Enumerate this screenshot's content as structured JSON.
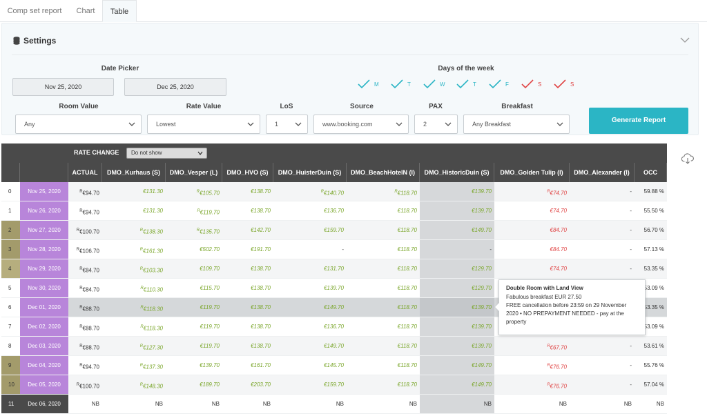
{
  "tabs": [
    "Comp set report",
    "Chart",
    "Table"
  ],
  "settings": {
    "title": "Settings",
    "date_picker_label": "Date Picker",
    "date_from": "Nov 25, 2020",
    "date_to": "Dec 25, 2020",
    "days_label": "Days of the week",
    "days": [
      {
        "letter": "M",
        "weekend": false
      },
      {
        "letter": "T",
        "weekend": false
      },
      {
        "letter": "W",
        "weekend": false
      },
      {
        "letter": "T",
        "weekend": false
      },
      {
        "letter": "F",
        "weekend": false
      },
      {
        "letter": "S",
        "weekend": true
      },
      {
        "letter": "S",
        "weekend": true
      }
    ],
    "room_value_label": "Room Value",
    "room_value": "Any",
    "rate_value_label": "Rate Value",
    "rate_value": "Lowest",
    "los_label": "LoS",
    "los": "1",
    "source_label": "Source",
    "source": "www.booking.com",
    "pax_label": "PAX",
    "pax": "2",
    "breakfast_label": "Breakfast",
    "breakfast": "Any Breakfast",
    "generate_label": "Generate Report"
  },
  "table": {
    "rate_change_label": "RATE CHANGE",
    "rate_change_value": "Do not show",
    "columns": [
      "ACTUAL",
      "DMO_Kurhaus (S)",
      "DMO_Vesper (L)",
      "DMO_HVO (S)",
      "DMO_HuisterDuin (S)",
      "DMO_BeachHotelN (I)",
      "DMO_HistoricDuin (S)",
      "DMO_Golden Tulip (I)",
      "DMO_Alexander (I)",
      "OCC"
    ],
    "rows": [
      {
        "idx": "0",
        "date": "Nov 25, 2020",
        "idxc": "#ffffff",
        "datec": "#b885da",
        "cells": [
          {
            "t": "€94.70",
            "c": "black",
            "r": true
          },
          {
            "t": "€131.30",
            "c": "green"
          },
          {
            "t": "€105.70",
            "c": "green",
            "r": true
          },
          {
            "t": "€138.70",
            "c": "green"
          },
          {
            "t": "€140.70",
            "c": "green",
            "r": true
          },
          {
            "t": "€118.70",
            "c": "green",
            "r": true
          },
          {
            "t": "€139.70",
            "c": "green"
          },
          {
            "t": "€74.70",
            "c": "red",
            "r": true
          },
          {
            "t": "-",
            "c": "black"
          },
          {
            "t": "59.88 %",
            "c": "black"
          }
        ]
      },
      {
        "idx": "1",
        "date": "Nov 26, 2020",
        "idxc": "#ffffff",
        "datec": "#b885da",
        "cells": [
          {
            "t": "€94.70",
            "c": "black",
            "r": true
          },
          {
            "t": "€131.30",
            "c": "green"
          },
          {
            "t": "€119.70",
            "c": "green",
            "r": true
          },
          {
            "t": "€138.70",
            "c": "green"
          },
          {
            "t": "€136.70",
            "c": "green"
          },
          {
            "t": "€118.70",
            "c": "green"
          },
          {
            "t": "€139.70",
            "c": "green"
          },
          {
            "t": "€74.70",
            "c": "red"
          },
          {
            "t": "-",
            "c": "black"
          },
          {
            "t": "55.50 %",
            "c": "black"
          }
        ]
      },
      {
        "idx": "2",
        "date": "Nov 27, 2020",
        "idxc": "#a39b6b",
        "datec": "#b885da",
        "cells": [
          {
            "t": "€100.70",
            "c": "black",
            "r": true
          },
          {
            "t": "€138.30",
            "c": "green",
            "r": true
          },
          {
            "t": "€135.70",
            "c": "green",
            "r": true
          },
          {
            "t": "€142.70",
            "c": "green"
          },
          {
            "t": "€159.70",
            "c": "green"
          },
          {
            "t": "€118.70",
            "c": "green"
          },
          {
            "t": "€149.70",
            "c": "green"
          },
          {
            "t": "€84.70",
            "c": "red"
          },
          {
            "t": "-",
            "c": "black"
          },
          {
            "t": "56.70 %",
            "c": "black"
          }
        ]
      },
      {
        "idx": "3",
        "date": "Nov 28, 2020",
        "idxc": "#a39b6b",
        "datec": "#b885da",
        "cells": [
          {
            "t": "€106.70",
            "c": "black",
            "r": true
          },
          {
            "t": "€161.30",
            "c": "green",
            "r": true
          },
          {
            "t": "€502.70",
            "c": "green"
          },
          {
            "t": "€191.70",
            "c": "green"
          },
          {
            "t": "-",
            "c": "black"
          },
          {
            "t": "€118.70",
            "c": "green"
          },
          {
            "t": "-",
            "c": "black"
          },
          {
            "t": "€84.70",
            "c": "red"
          },
          {
            "t": "-",
            "c": "black"
          },
          {
            "t": "57.13 %",
            "c": "black"
          }
        ]
      },
      {
        "idx": "4",
        "date": "Nov 29, 2020",
        "idxc": "#b6ae7e",
        "datec": "#b885da",
        "cells": [
          {
            "t": "€84.70",
            "c": "black",
            "r": true
          },
          {
            "t": "€103.30",
            "c": "green",
            "r": true
          },
          {
            "t": "€109.70",
            "c": "green"
          },
          {
            "t": "€138.70",
            "c": "green"
          },
          {
            "t": "€131.70",
            "c": "green"
          },
          {
            "t": "€118.70",
            "c": "green"
          },
          {
            "t": "€129.70",
            "c": "green"
          },
          {
            "t": "€74.70",
            "c": "red"
          },
          {
            "t": "-",
            "c": "black"
          },
          {
            "t": "53.35 %",
            "c": "black"
          }
        ]
      },
      {
        "idx": "5",
        "date": "Nov 30, 2020",
        "idxc": "#ffffff",
        "datec": "#b885da",
        "cells": [
          {
            "t": "€84.70",
            "c": "black",
            "r": true
          },
          {
            "t": "€110.30",
            "c": "green",
            "r": true
          },
          {
            "t": "€115.70",
            "c": "green"
          },
          {
            "t": "€138.70",
            "c": "green"
          },
          {
            "t": "€139.70",
            "c": "green"
          },
          {
            "t": "€118.70",
            "c": "green"
          },
          {
            "t": "€129.70",
            "c": "green"
          },
          {
            "t": "",
            "c": "black"
          },
          {
            "t": "",
            "c": "black"
          },
          {
            "t": "53.09 %",
            "c": "black"
          }
        ]
      },
      {
        "idx": "6",
        "date": "Dec 01, 2020",
        "idxc": "#ffffff",
        "datec": "#b885da",
        "hl": true,
        "cells": [
          {
            "t": "€88.70",
            "c": "black",
            "r": true
          },
          {
            "t": "€118.30",
            "c": "green",
            "r": true
          },
          {
            "t": "€119.70",
            "c": "green"
          },
          {
            "t": "€138.70",
            "c": "green"
          },
          {
            "t": "€149.70",
            "c": "green"
          },
          {
            "t": "€118.70",
            "c": "green"
          },
          {
            "t": "€139.70",
            "c": "green"
          },
          {
            "t": "",
            "c": "black"
          },
          {
            "t": "",
            "c": "black"
          },
          {
            "t": "53.35 %",
            "c": "black"
          }
        ]
      },
      {
        "idx": "7",
        "date": "Dec 02, 2020",
        "idxc": "#ffffff",
        "datec": "#b885da",
        "cells": [
          {
            "t": "€88.70",
            "c": "black",
            "r": true
          },
          {
            "t": "€118.30",
            "c": "green",
            "r": true
          },
          {
            "t": "€119.70",
            "c": "green"
          },
          {
            "t": "€138.70",
            "c": "green"
          },
          {
            "t": "€136.70",
            "c": "green"
          },
          {
            "t": "€118.70",
            "c": "green"
          },
          {
            "t": "€139.70",
            "c": "green"
          },
          {
            "t": "",
            "c": "black"
          },
          {
            "t": "",
            "c": "black"
          },
          {
            "t": "53.09 %",
            "c": "black"
          }
        ]
      },
      {
        "idx": "8",
        "date": "Dec 03, 2020",
        "idxc": "#ffffff",
        "datec": "#b885da",
        "cells": [
          {
            "t": "€88.70",
            "c": "black",
            "r": true
          },
          {
            "t": "€127.30",
            "c": "green",
            "r": true
          },
          {
            "t": "€119.70",
            "c": "green"
          },
          {
            "t": "€138.70",
            "c": "green"
          },
          {
            "t": "€149.70",
            "c": "green"
          },
          {
            "t": "€118.70",
            "c": "green"
          },
          {
            "t": "€139.70",
            "c": "green"
          },
          {
            "t": "€67.70",
            "c": "red",
            "r": true
          },
          {
            "t": "-",
            "c": "black"
          },
          {
            "t": "53.61 %",
            "c": "black"
          }
        ]
      },
      {
        "idx": "9",
        "date": "Dec 04, 2020",
        "idxc": "#a39b6b",
        "datec": "#b885da",
        "cells": [
          {
            "t": "€94.70",
            "c": "black",
            "r": true
          },
          {
            "t": "€137.30",
            "c": "green",
            "r": true
          },
          {
            "t": "€139.70",
            "c": "green"
          },
          {
            "t": "€161.70",
            "c": "green"
          },
          {
            "t": "€145.70",
            "c": "green"
          },
          {
            "t": "€118.70",
            "c": "green"
          },
          {
            "t": "€149.70",
            "c": "green"
          },
          {
            "t": "€76.70",
            "c": "red",
            "r": true
          },
          {
            "t": "-",
            "c": "black"
          },
          {
            "t": "55.76 %",
            "c": "black"
          }
        ]
      },
      {
        "idx": "10",
        "date": "Dec 05, 2020",
        "idxc": "#a39b6b",
        "datec": "#b885da",
        "cells": [
          {
            "t": "€100.70",
            "c": "black",
            "r": true
          },
          {
            "t": "€148.30",
            "c": "green",
            "r": true
          },
          {
            "t": "€189.70",
            "c": "green"
          },
          {
            "t": "€203.70",
            "c": "green"
          },
          {
            "t": "€159.70",
            "c": "green"
          },
          {
            "t": "€118.70",
            "c": "green"
          },
          {
            "t": "€149.70",
            "c": "green"
          },
          {
            "t": "€76.70",
            "c": "red",
            "r": true
          },
          {
            "t": "-",
            "c": "black"
          },
          {
            "t": "57.04 %",
            "c": "black"
          }
        ]
      },
      {
        "idx": "11",
        "date": "Dec 06, 2020",
        "idxc": "#4a4a4a",
        "datec": "#4a4a4a",
        "cells": [
          {
            "t": "NB",
            "c": "black"
          },
          {
            "t": "NB",
            "c": "black"
          },
          {
            "t": "NB",
            "c": "black"
          },
          {
            "t": "NB",
            "c": "black"
          },
          {
            "t": "NB",
            "c": "black"
          },
          {
            "t": "NB",
            "c": "black"
          },
          {
            "t": "NB",
            "c": "black"
          },
          {
            "t": "NB",
            "c": "black"
          },
          {
            "t": "NB",
            "c": "black"
          },
          {
            "t": "NB",
            "c": "black"
          }
        ]
      }
    ]
  },
  "tooltip": {
    "title": "Double Room with Land View",
    "line1": "Fabulous breakfast EUR 27.50",
    "line2": "FREE cancellation before 23:59 on 29 November 2020 • NO PREPAYMENT NEEDED - pay at the property"
  },
  "colors": {
    "accent": "#2bb5c5",
    "green": "#7aa62a",
    "red": "#e04545",
    "date_purple": "#b885da",
    "header": "#4a4a4a"
  },
  "icons": {
    "settings": "database-icon",
    "collapse": "chevron-down-icon",
    "download": "cloud-download-icon",
    "day_check": "check-icon"
  }
}
